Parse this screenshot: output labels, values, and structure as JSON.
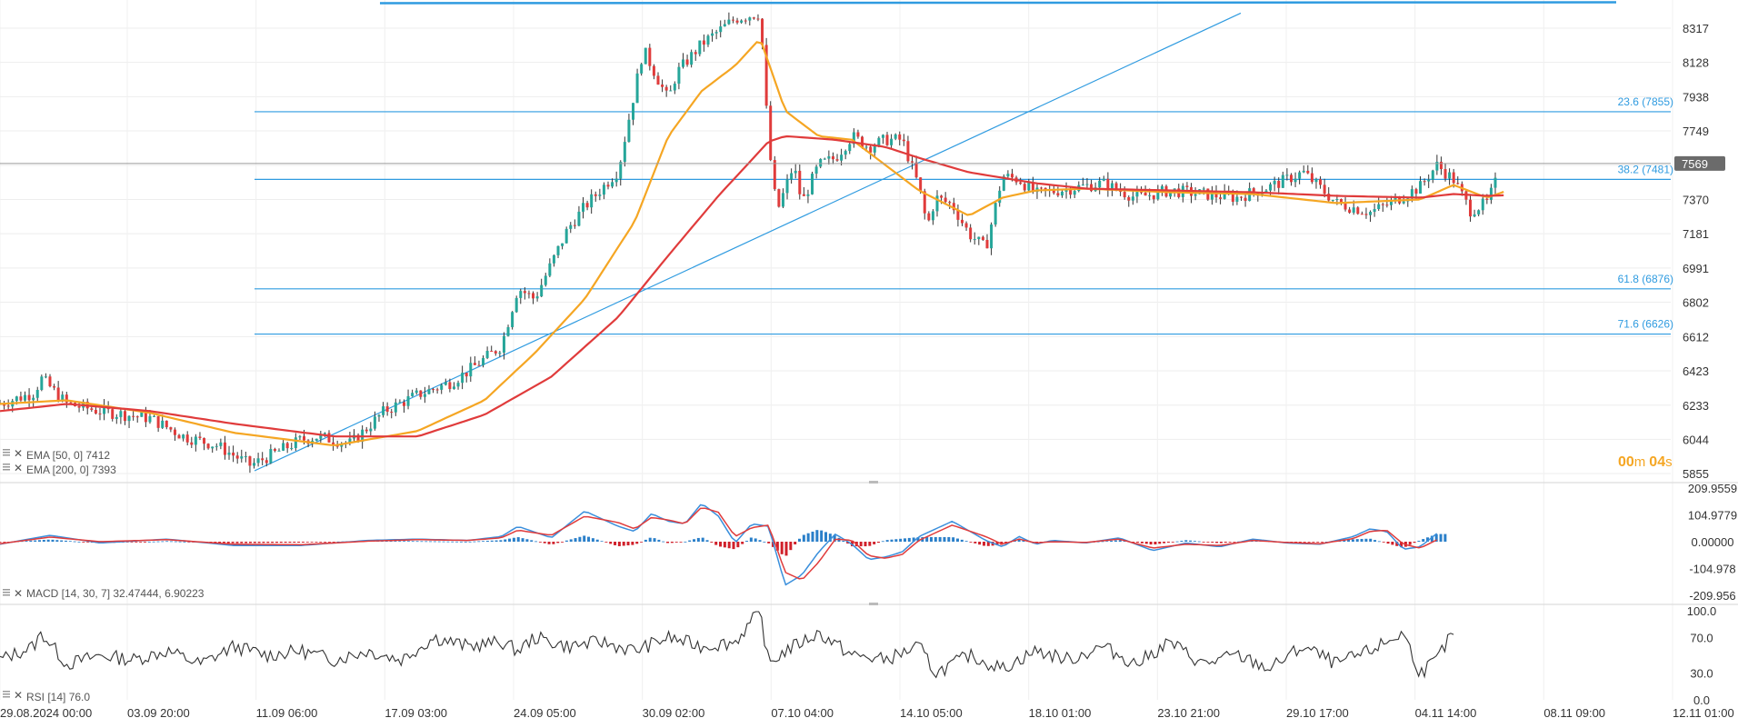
{
  "chart_data": [
    {
      "panel": "price",
      "type": "candlestick",
      "y_ticks": [
        "8317",
        "8128",
        "7938",
        "7749",
        "7559",
        "7370",
        "7181",
        "6991",
        "6802",
        "6612",
        "6423",
        "6233",
        "6044",
        "5855"
      ],
      "ylim": [
        5855,
        8400
      ],
      "current_price": {
        "label": "7569",
        "value": 7569
      },
      "fibonacci_levels": [
        {
          "label": "23.6 (7855)",
          "value": 7855
        },
        {
          "label": "38.2 (7481)",
          "value": 7481
        },
        {
          "label": "61.8 (6876)",
          "value": 6876
        },
        {
          "label": "71.6 (6626)",
          "value": 6626
        }
      ],
      "fib_high": {
        "value": 8400
      },
      "trendline": {
        "from": {
          "date": "11.09",
          "value": 5870
        },
        "to": {
          "date": "31.10",
          "value": 8400
        }
      },
      "series": [
        {
          "name": "EMA [50, 0] 7412",
          "color": "#f5a623",
          "x": [
            0,
            0.04,
            0.09,
            0.14,
            0.2,
            0.25,
            0.29,
            0.32,
            0.35,
            0.38,
            0.4,
            0.42,
            0.44,
            0.455,
            0.47,
            0.49,
            0.51,
            0.53,
            0.55,
            0.58,
            0.6,
            0.62,
            0.65,
            0.7,
            0.75,
            0.8,
            0.85,
            0.87,
            0.89,
            0.9
          ],
          "values": [
            6240,
            6260,
            6190,
            6080,
            6010,
            6090,
            6260,
            6520,
            6820,
            7250,
            7720,
            7970,
            8110,
            8260,
            7860,
            7720,
            7700,
            7560,
            7420,
            7280,
            7380,
            7420,
            7430,
            7410,
            7400,
            7350,
            7370,
            7450,
            7380,
            7412
          ]
        },
        {
          "name": "EMA [200, 0] 7393",
          "color": "#e03b3b",
          "x": [
            0,
            0.04,
            0.09,
            0.14,
            0.2,
            0.25,
            0.29,
            0.33,
            0.37,
            0.4,
            0.43,
            0.46,
            0.47,
            0.5,
            0.53,
            0.55,
            0.58,
            0.62,
            0.65,
            0.7,
            0.75,
            0.8,
            0.85,
            0.87,
            0.89,
            0.9
          ],
          "values": [
            6200,
            6240,
            6200,
            6130,
            6060,
            6060,
            6180,
            6390,
            6720,
            7060,
            7390,
            7690,
            7720,
            7700,
            7660,
            7600,
            7520,
            7460,
            7430,
            7420,
            7410,
            7390,
            7380,
            7400,
            7390,
            7393
          ]
        }
      ],
      "close_path": {
        "x": [
          0,
          0.02,
          0.025,
          0.04,
          0.06,
          0.09,
          0.11,
          0.13,
          0.15,
          0.18,
          0.19,
          0.21,
          0.23,
          0.25,
          0.27,
          0.28,
          0.3,
          0.31,
          0.32,
          0.34,
          0.35,
          0.37,
          0.385,
          0.4,
          0.405,
          0.42,
          0.44,
          0.445,
          0.455,
          0.46,
          0.465,
          0.475,
          0.48,
          0.49,
          0.5,
          0.51,
          0.52,
          0.53,
          0.54,
          0.55,
          0.555,
          0.56,
          0.57,
          0.58,
          0.59,
          0.6,
          0.61,
          0.62,
          0.64,
          0.66,
          0.68,
          0.7,
          0.72,
          0.74,
          0.76,
          0.78,
          0.8,
          0.82,
          0.83,
          0.84,
          0.85,
          0.86,
          0.87,
          0.88,
          0.89,
          0.9
        ],
        "values": [
          6240,
          6300,
          6380,
          6240,
          6200,
          6160,
          6060,
          6010,
          5900,
          6040,
          6060,
          6020,
          6200,
          6290,
          6360,
          6420,
          6560,
          6880,
          6820,
          7210,
          7330,
          7530,
          8200,
          7920,
          8070,
          8230,
          8370,
          8380,
          8400,
          7680,
          7300,
          7560,
          7350,
          7560,
          7600,
          7720,
          7660,
          7700,
          7700,
          7440,
          7220,
          7380,
          7340,
          7180,
          7100,
          7500,
          7480,
          7400,
          7430,
          7460,
          7380,
          7420,
          7400,
          7380,
          7440,
          7520,
          7350,
          7300,
          7340,
          7390,
          7440,
          7560,
          7480,
          7310,
          7350,
          7569
        ]
      }
    },
    {
      "panel": "macd",
      "type": "line",
      "title": "MACD [14, 30, 7] 32.47444,  6.90223",
      "y_ticks": [
        "209.9559",
        "104.9779",
        "0.00000",
        "-104.978",
        "-209.956"
      ],
      "ylim": [
        -209.956,
        209.9559
      ],
      "series": [
        {
          "color": "#3a8fdc",
          "x": [
            0,
            0.03,
            0.06,
            0.1,
            0.14,
            0.18,
            0.22,
            0.25,
            0.28,
            0.3,
            0.31,
            0.33,
            0.35,
            0.37,
            0.38,
            0.39,
            0.4,
            0.41,
            0.42,
            0.43,
            0.44,
            0.45,
            0.46,
            0.47,
            0.48,
            0.49,
            0.5,
            0.51,
            0.52,
            0.53,
            0.54,
            0.55,
            0.57,
            0.59,
            0.6,
            0.61,
            0.62,
            0.63,
            0.65,
            0.67,
            0.69,
            0.71,
            0.73,
            0.75,
            0.77,
            0.79,
            0.81,
            0.82,
            0.83,
            0.84,
            0.85,
            0.86
          ],
          "values": [
            -10,
            25,
            -5,
            10,
            -15,
            -15,
            5,
            10,
            5,
            20,
            60,
            15,
            120,
            60,
            40,
            110,
            80,
            70,
            150,
            100,
            -5,
            70,
            60,
            -170,
            -130,
            -40,
            30,
            -10,
            -70,
            -60,
            -40,
            20,
            80,
            5,
            -20,
            20,
            -10,
            5,
            -5,
            15,
            -35,
            -5,
            -20,
            10,
            -5,
            -10,
            20,
            50,
            40,
            -30,
            -20,
            32
          ]
        },
        {
          "color": "#e03b3b",
          "x": [
            0,
            0.03,
            0.06,
            0.1,
            0.14,
            0.18,
            0.22,
            0.25,
            0.28,
            0.3,
            0.31,
            0.33,
            0.35,
            0.37,
            0.38,
            0.39,
            0.4,
            0.41,
            0.42,
            0.43,
            0.44,
            0.45,
            0.46,
            0.47,
            0.48,
            0.49,
            0.5,
            0.51,
            0.52,
            0.53,
            0.54,
            0.55,
            0.57,
            0.59,
            0.6,
            0.61,
            0.62,
            0.63,
            0.65,
            0.67,
            0.69,
            0.71,
            0.73,
            0.75,
            0.77,
            0.79,
            0.81,
            0.82,
            0.83,
            0.84,
            0.85,
            0.86
          ],
          "values": [
            -8,
            18,
            0,
            8,
            -10,
            -12,
            2,
            8,
            5,
            15,
            45,
            25,
            100,
            75,
            50,
            95,
            85,
            70,
            135,
            115,
            20,
            55,
            65,
            -120,
            -150,
            -80,
            10,
            5,
            -55,
            -65,
            -50,
            5,
            65,
            20,
            -10,
            10,
            -5,
            0,
            -3,
            10,
            -25,
            -10,
            -15,
            5,
            -3,
            -8,
            12,
            40,
            45,
            -10,
            -25,
            7
          ]
        }
      ]
    },
    {
      "panel": "rsi",
      "type": "line",
      "title": "RSI [14] 76.0",
      "y_ticks": [
        "100.0",
        "70.0",
        "30.0",
        "0.0"
      ],
      "ylim": [
        0,
        100
      ],
      "series": [
        {
          "color": "#333333",
          "x": [
            0,
            0.02,
            0.025,
            0.04,
            0.06,
            0.08,
            0.1,
            0.12,
            0.14,
            0.16,
            0.18,
            0.2,
            0.22,
            0.24,
            0.26,
            0.28,
            0.3,
            0.31,
            0.32,
            0.34,
            0.36,
            0.38,
            0.4,
            0.42,
            0.44,
            0.455,
            0.46,
            0.47,
            0.49,
            0.51,
            0.53,
            0.55,
            0.56,
            0.58,
            0.6,
            0.62,
            0.64,
            0.66,
            0.68,
            0.7,
            0.72,
            0.74,
            0.76,
            0.78,
            0.8,
            0.82,
            0.83,
            0.84,
            0.85,
            0.86,
            0.87
          ],
          "values": [
            45,
            60,
            75,
            40,
            50,
            45,
            55,
            40,
            60,
            50,
            55,
            45,
            55,
            45,
            70,
            60,
            65,
            55,
            70,
            60,
            65,
            55,
            70,
            60,
            65,
            100,
            40,
            55,
            75,
            50,
            45,
            60,
            30,
            50,
            35,
            55,
            45,
            60,
            40,
            65,
            40,
            50,
            35,
            60,
            40,
            55,
            65,
            75,
            30,
            45,
            76
          ]
        }
      ]
    }
  ],
  "x_axis": {
    "labels": [
      "29.08.2024  00:00",
      "03.09  20:00",
      "11.09  06:00",
      "17.09  03:00",
      "24.09  05:00",
      "30.09  02:00",
      "07.10  04:00",
      "14.10  05:00",
      "18.10  01:00",
      "23.10  21:00",
      "29.10  17:00",
      "04.11  14:00",
      "08.11  09:00",
      "12.11  01:00"
    ]
  },
  "legend": {
    "ema50": "EMA [50, 0] 7412",
    "ema200": "EMA [200, 0] 7393",
    "macd": "MACD [14, 30, 7] 32.47444,  6.90223",
    "rsi": "RSI [14] 76.0"
  },
  "timer": {
    "minutes": "00",
    "m_unit": "m",
    "seconds": "04",
    "s_unit": "s"
  },
  "colors": {
    "fib": "#2f9be0",
    "ema50": "#f5a623",
    "ema200": "#e03b3b",
    "up": "#26a69a",
    "down": "#e03b3b",
    "badge": "#6b6b6b",
    "hist_pos": "#2a7fc9",
    "hist_neg": "#d0202a"
  }
}
